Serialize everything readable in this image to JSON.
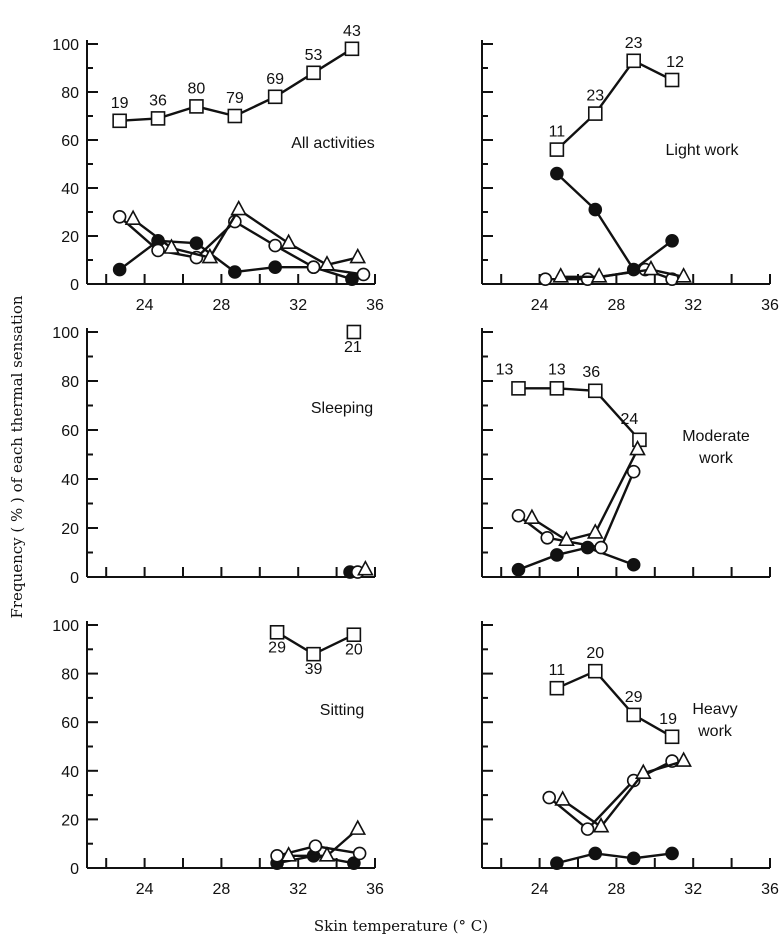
{
  "figure": {
    "ylabel": "Frequency ( % ) of each thermal sensation",
    "xlabel": "Skin temperature (° C)"
  },
  "chart_data": [
    {
      "type": "line",
      "panel_title": "All activities",
      "xlim": [
        21,
        36
      ],
      "ylim": [
        0,
        100
      ],
      "x_ticks": [
        "24",
        "28",
        "32",
        "36"
      ],
      "y_ticks": [
        "0",
        "20",
        "40",
        "60",
        "80",
        "100"
      ],
      "series": [
        {
          "marker": "square",
          "points": [
            [
              22.7,
              68
            ],
            [
              24.7,
              69
            ],
            [
              26.7,
              74
            ],
            [
              28.7,
              70
            ],
            [
              30.8,
              78
            ],
            [
              32.8,
              88
            ],
            [
              34.8,
              98
            ]
          ],
          "labels": [
            "19",
            "36",
            "80",
            "79",
            "69",
            "53",
            "43"
          ]
        },
        {
          "marker": "filled-circle",
          "points": [
            [
              22.7,
              6
            ],
            [
              24.7,
              18
            ],
            [
              26.7,
              17
            ],
            [
              28.7,
              5
            ],
            [
              30.8,
              7
            ],
            [
              32.8,
              7
            ],
            [
              34.8,
              2
            ]
          ]
        },
        {
          "marker": "open-circle",
          "points": [
            [
              22.7,
              28
            ],
            [
              24.7,
              14
            ],
            [
              26.7,
              11
            ],
            [
              28.7,
              26
            ],
            [
              30.8,
              16
            ],
            [
              32.8,
              7
            ],
            [
              35.4,
              4
            ]
          ]
        },
        {
          "marker": "triangle",
          "points": [
            [
              23.4,
              27
            ],
            [
              25.4,
              15
            ],
            [
              27.4,
              11
            ],
            [
              28.9,
              31
            ],
            [
              31.5,
              17
            ],
            [
              33.5,
              8
            ],
            [
              35.1,
              11
            ]
          ]
        }
      ]
    },
    {
      "type": "line",
      "panel_title": "Light work",
      "xlim": [
        21,
        36
      ],
      "ylim": [
        0,
        100
      ],
      "x_ticks": [
        "24",
        "28",
        "32",
        "36"
      ],
      "y_ticks": [],
      "series": [
        {
          "marker": "square",
          "points": [
            [
              24.9,
              56
            ],
            [
              26.9,
              71
            ],
            [
              28.9,
              93
            ],
            [
              30.9,
              85
            ]
          ],
          "labels": [
            "11",
            "23",
            "23",
            "12"
          ]
        },
        {
          "marker": "filled-circle",
          "points": [
            [
              24.9,
              46
            ],
            [
              26.9,
              31
            ],
            [
              28.9,
              6
            ],
            [
              30.9,
              18
            ]
          ]
        },
        {
          "marker": "open-circle",
          "points": [
            [
              24.3,
              2
            ],
            [
              26.5,
              2
            ],
            [
              29.5,
              6
            ],
            [
              30.9,
              2
            ]
          ]
        },
        {
          "marker": "triangle",
          "points": [
            [
              25.1,
              3
            ],
            [
              27.1,
              3
            ],
            [
              29.8,
              6
            ],
            [
              31.5,
              3
            ]
          ]
        }
      ]
    },
    {
      "type": "line",
      "panel_title": "Sleeping",
      "xlim": [
        21,
        36
      ],
      "ylim": [
        0,
        100
      ],
      "x_ticks": [],
      "y_ticks": [
        "0",
        "20",
        "40",
        "60",
        "80",
        "100"
      ],
      "series": [
        {
          "marker": "square",
          "points": [
            [
              34.9,
              100
            ]
          ],
          "labels": [
            "21"
          ]
        },
        {
          "marker": "filled-circle",
          "points": [
            [
              34.7,
              2
            ]
          ]
        },
        {
          "marker": "open-circle",
          "points": [
            [
              35.1,
              2
            ]
          ]
        },
        {
          "marker": "triangle",
          "points": [
            [
              35.5,
              3
            ]
          ]
        }
      ]
    },
    {
      "type": "line",
      "panel_title": "Moderate work",
      "xlim": [
        21,
        36
      ],
      "ylim": [
        0,
        100
      ],
      "x_ticks": [],
      "y_ticks": [],
      "series": [
        {
          "marker": "square",
          "points": [
            [
              22.9,
              77
            ],
            [
              24.9,
              77
            ],
            [
              26.9,
              76
            ],
            [
              29.2,
              56
            ]
          ],
          "labels": [
            "13",
            "13",
            "36",
            "24"
          ]
        },
        {
          "marker": "filled-circle",
          "points": [
            [
              22.9,
              3
            ],
            [
              24.9,
              9
            ],
            [
              26.5,
              12
            ],
            [
              28.9,
              5
            ]
          ]
        },
        {
          "marker": "open-circle",
          "points": [
            [
              22.9,
              25
            ],
            [
              24.4,
              16
            ],
            [
              27.2,
              12
            ],
            [
              28.9,
              43
            ]
          ]
        },
        {
          "marker": "triangle",
          "points": [
            [
              23.6,
              24
            ],
            [
              25.4,
              15
            ],
            [
              26.9,
              18
            ],
            [
              29.1,
              52
            ]
          ]
        }
      ]
    },
    {
      "type": "line",
      "panel_title": "Sitting",
      "xlim": [
        21,
        36
      ],
      "ylim": [
        0,
        100
      ],
      "x_ticks": [
        "24",
        "28",
        "32",
        "36"
      ],
      "y_ticks": [
        "0",
        "20",
        "40",
        "60",
        "80",
        "100"
      ],
      "series": [
        {
          "marker": "square",
          "points": [
            [
              30.9,
              97
            ],
            [
              32.8,
              88
            ],
            [
              34.9,
              96
            ]
          ],
          "labels": [
            "29",
            "39",
            "20"
          ]
        },
        {
          "marker": "filled-circle",
          "points": [
            [
              30.9,
              2
            ],
            [
              32.8,
              5
            ],
            [
              34.9,
              2
            ]
          ]
        },
        {
          "marker": "open-circle",
          "points": [
            [
              30.9,
              5
            ],
            [
              32.9,
              9
            ],
            [
              35.2,
              6
            ]
          ]
        },
        {
          "marker": "triangle",
          "points": [
            [
              31.5,
              5
            ],
            [
              33.5,
              5
            ],
            [
              35.1,
              16
            ]
          ]
        }
      ]
    },
    {
      "type": "line",
      "panel_title": "Heavy work",
      "xlim": [
        21,
        36
      ],
      "ylim": [
        0,
        100
      ],
      "x_ticks": [
        "24",
        "28",
        "32",
        "36"
      ],
      "y_ticks": [],
      "series": [
        {
          "marker": "square",
          "points": [
            [
              24.9,
              74
            ],
            [
              26.9,
              81
            ],
            [
              28.9,
              63
            ],
            [
              30.9,
              54
            ]
          ],
          "labels": [
            "11",
            "20",
            "29",
            "19"
          ]
        },
        {
          "marker": "filled-circle",
          "points": [
            [
              24.9,
              2
            ],
            [
              26.9,
              6
            ],
            [
              28.9,
              4
            ],
            [
              30.9,
              6
            ]
          ]
        },
        {
          "marker": "open-circle",
          "points": [
            [
              24.5,
              29
            ],
            [
              26.5,
              16
            ],
            [
              28.9,
              36
            ],
            [
              30.9,
              44
            ]
          ]
        },
        {
          "marker": "triangle",
          "points": [
            [
              25.2,
              28
            ],
            [
              27.2,
              17
            ],
            [
              29.4,
              39
            ],
            [
              31.5,
              44
            ]
          ]
        }
      ]
    }
  ]
}
